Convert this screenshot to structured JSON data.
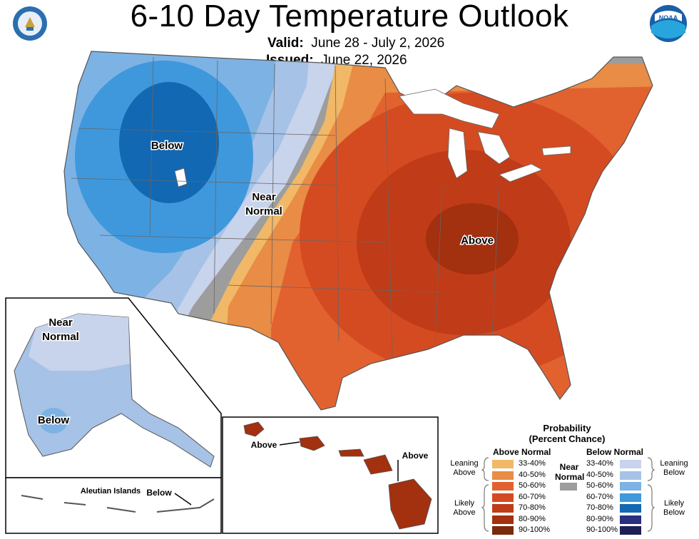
{
  "title": "6-10 Day Temperature Outlook",
  "valid_label": "Valid:",
  "valid_value": "June 28 - July 2, 2026",
  "issued_label": "Issued:",
  "issued_value": "June 22, 2026",
  "seals": {
    "left": "department-of-commerce-seal",
    "right": "noaa-logo"
  },
  "map_labels": {
    "below_west": "Below",
    "near_normal_1": "Near",
    "near_normal_2": "Normal",
    "above_east": "Above",
    "alaska_near_1": "Near",
    "alaska_near_2": "Normal",
    "alaska_below": "Below",
    "aleutian": "Aleutian Islands",
    "aleutian_below": "Below",
    "hawaii_above_left": "Above",
    "hawaii_above_right": "Above"
  },
  "legend": {
    "title_1": "Probability",
    "title_2": "(Percent Chance)",
    "above_header": "Above Normal",
    "below_header": "Below Normal",
    "near_header_1": "Near",
    "near_header_2": "Normal",
    "leaning_above_1": "Leaning",
    "leaning_above_2": "Above",
    "likely_above_1": "Likely",
    "likely_above_2": "Above",
    "leaning_below_1": "Leaning",
    "leaning_below_2": "Below",
    "likely_below_1": "Likely",
    "likely_below_2": "Below",
    "above": [
      {
        "range": "33-40%",
        "color": "#f0b867"
      },
      {
        "range": "40-50%",
        "color": "#e98c45"
      },
      {
        "range": "50-60%",
        "color": "#e2622f"
      },
      {
        "range": "60-70%",
        "color": "#d44b22"
      },
      {
        "range": "70-80%",
        "color": "#c03b17"
      },
      {
        "range": "80-90%",
        "color": "#a3300f"
      },
      {
        "range": "90-100%",
        "color": "#7a2a0c"
      }
    ],
    "below": [
      {
        "range": "33-40%",
        "color": "#c8d3ec"
      },
      {
        "range": "40-50%",
        "color": "#a6c2e6"
      },
      {
        "range": "50-60%",
        "color": "#7db2e4"
      },
      {
        "range": "60-70%",
        "color": "#3f98dc"
      },
      {
        "range": "70-80%",
        "color": "#1268b3"
      },
      {
        "range": "80-90%",
        "color": "#2a2f7e"
      },
      {
        "range": "90-100%",
        "color": "#1d1f55"
      }
    ],
    "near_color": "#9d9d9d"
  }
}
